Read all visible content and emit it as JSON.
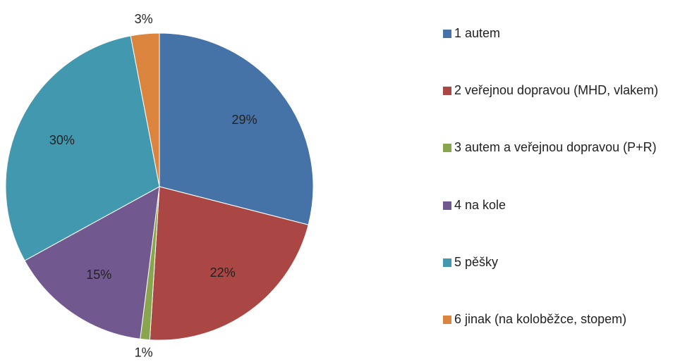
{
  "chart_data": {
    "type": "pie",
    "categories": [
      "1 autem",
      "2 veřejnou dopravou (MHD, vlakem)",
      "3 autem a veřejnou dopravou (P+R)",
      "4 na kole",
      "5 pěšky",
      "6 jinak (na koloběžce, stopem)"
    ],
    "values": [
      29,
      22,
      1,
      15,
      30,
      3
    ],
    "value_labels": [
      "29%",
      "22%",
      "1%",
      "15%",
      "30%",
      "3%"
    ],
    "colors": [
      "#4572a7",
      "#aa4643",
      "#89a54e",
      "#71588f",
      "#4198af",
      "#db843d"
    ],
    "legend": "right"
  }
}
